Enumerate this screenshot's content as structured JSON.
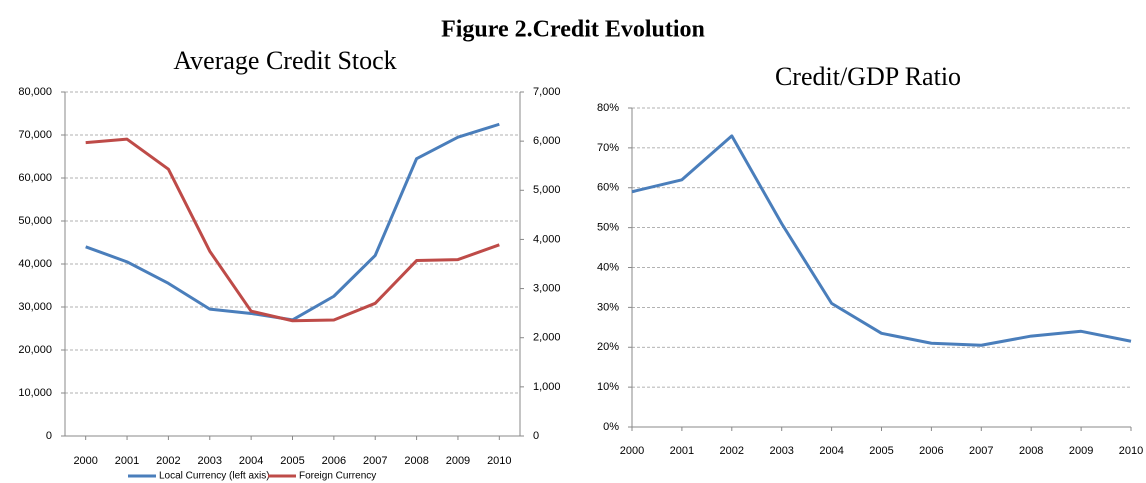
{
  "title": "Figure 2.Credit Evolution",
  "chart_data": [
    {
      "type": "line",
      "title": "Average Credit Stock",
      "categories": [
        "2000",
        "2001",
        "2002",
        "2003",
        "2004",
        "2005",
        "2006",
        "2007",
        "2008",
        "2009",
        "2010"
      ],
      "series": [
        {
          "name": "Local Currency (left axis)",
          "color": "#4a7ebb",
          "values": [
            44000,
            40500,
            35500,
            29500,
            28500,
            27000,
            32500,
            42000,
            64500,
            69500,
            72500
          ]
        },
        {
          "name": "Foreign Currency",
          "color": "#be4b48",
          "axis": "y2",
          "values": [
            5970,
            6040,
            5430,
            3760,
            2540,
            2345,
            2360,
            2700,
            3570,
            3590,
            3890
          ]
        }
      ],
      "ylim": [
        0,
        80000
      ],
      "yticks": [
        0,
        {
          "value": 10000,
          "label": "10,000"
        },
        {
          "value": 20000,
          "label": "20,000"
        },
        {
          "value": 30000,
          "label": "30,000"
        },
        {
          "value": 40000,
          "label": "40,000"
        },
        {
          "value": 50000,
          "label": "50,000"
        },
        {
          "value": 60000,
          "label": "60,000"
        },
        {
          "value": 70000,
          "label": "70,000"
        },
        {
          "value": 80000,
          "label": "80,000"
        }
      ],
      "y2lim": [
        0,
        7000
      ],
      "y2ticks": [
        0,
        {
          "value": 1000,
          "label": "1,000"
        },
        {
          "value": 2000,
          "label": "2,000"
        },
        {
          "value": 3000,
          "label": "3,000"
        },
        {
          "value": 4000,
          "label": "4,000"
        },
        {
          "value": 5000,
          "label": "5,000"
        },
        {
          "value": 6000,
          "label": "6,000"
        },
        {
          "value": 7000,
          "label": "7,000"
        }
      ],
      "grid": true,
      "legend": "bottom"
    },
    {
      "type": "line",
      "title": "Credit/GDP Ratio",
      "categories": [
        "2000",
        "2001",
        "2002",
        "2003",
        "2004",
        "2005",
        "2006",
        "2007",
        "2008",
        "2009",
        "2010"
      ],
      "values": [
        59,
        62,
        73,
        51,
        31,
        23.5,
        21,
        20.5,
        22.8,
        24,
        21.5
      ],
      "color": "#4a7ebb",
      "ylim": [
        0,
        80
      ],
      "yticks": [
        {
          "value": 0,
          "label": "0%"
        },
        {
          "value": 10,
          "label": "10%"
        },
        {
          "value": 20,
          "label": "20%"
        },
        {
          "value": 30,
          "label": "30%"
        },
        {
          "value": 40,
          "label": "40%"
        },
        {
          "value": 50,
          "label": "50%"
        },
        {
          "value": 60,
          "label": "60%"
        },
        {
          "value": 70,
          "label": "70%"
        },
        {
          "value": 80,
          "label": "80%"
        }
      ],
      "grid": true
    }
  ]
}
